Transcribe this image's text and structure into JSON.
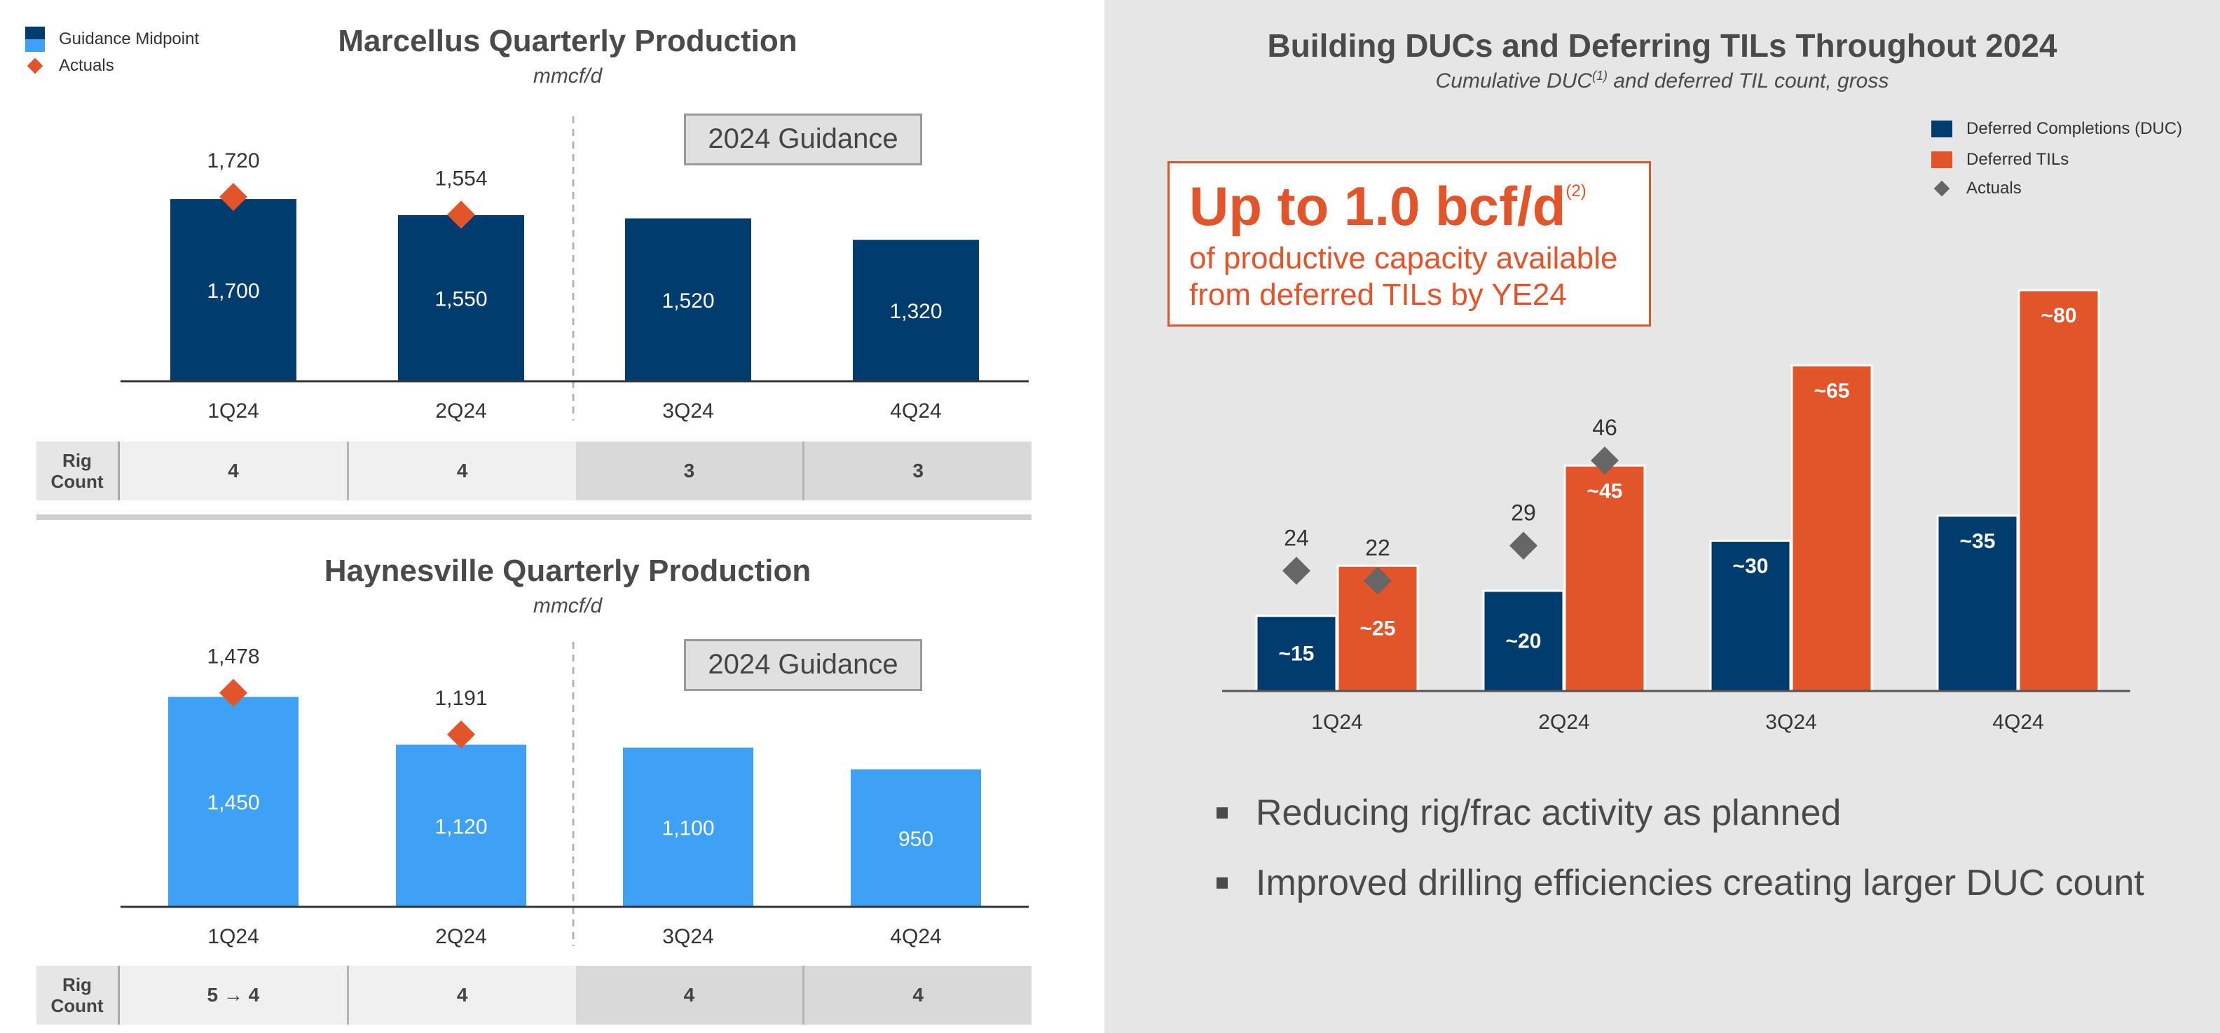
{
  "legend_left": {
    "guidance": "Guidance Midpoint",
    "actuals": "Actuals"
  },
  "marcellus": {
    "title": "Marcellus Quarterly Production",
    "subtitle": "mmcf/d",
    "guidance_label": "2024 Guidance",
    "rig_head": [
      "Rig",
      "Count"
    ],
    "rig_counts": [
      "4",
      "4",
      "3",
      "3"
    ]
  },
  "haynesville": {
    "title": "Haynesville Quarterly Production",
    "subtitle": "mmcf/d",
    "guidance_label": "2024 Guidance",
    "rig_head": [
      "Rig",
      "Count"
    ],
    "rig_counts": [
      "5 → 4",
      "4",
      "4",
      "4"
    ]
  },
  "duc": {
    "title": "Building DUCs and Deferring TILs Throughout 2024",
    "subtitle_pre": "Cumulative DUC",
    "subtitle_sup": "(1)",
    "subtitle_post": " and deferred TIL count, gross",
    "legend": {
      "duc": "Deferred Completions (DUC)",
      "til": "Deferred TILs",
      "actuals": "Actuals"
    },
    "callout": {
      "headline": "Up to 1.0 bcf/d",
      "sup": "(2)",
      "line1": "of productive capacity available",
      "line2": "from deferred TILs by YE24"
    },
    "bullets": [
      "Reducing rig/frac activity as planned",
      "Improved drilling efficiencies creating larger DUC count"
    ]
  },
  "colors": {
    "navy": "#003d6e",
    "light_blue": "#3fa1f3",
    "orange": "#e2542a",
    "gray_diamond": "#666666"
  },
  "chart_data": [
    {
      "type": "bar",
      "title": "Marcellus Quarterly Production",
      "subtitle": "mmcf/d",
      "categories": [
        "1Q24",
        "2Q24",
        "3Q24",
        "4Q24"
      ],
      "series": [
        {
          "name": "Guidance Midpoint",
          "values": [
            1700,
            1550,
            1520,
            1320
          ],
          "labels": [
            "1,700",
            "1,550",
            "1,520",
            "1,320"
          ]
        },
        {
          "name": "Actuals",
          "values": [
            1720,
            1554,
            null,
            null
          ],
          "labels": [
            "1,720",
            "1,554",
            null,
            null
          ]
        }
      ],
      "ylim": [
        0,
        2300
      ]
    },
    {
      "type": "bar",
      "title": "Haynesville Quarterly Production",
      "subtitle": "mmcf/d",
      "categories": [
        "1Q24",
        "2Q24",
        "3Q24",
        "4Q24"
      ],
      "series": [
        {
          "name": "Guidance Midpoint",
          "values": [
            1450,
            1120,
            1100,
            950
          ],
          "labels": [
            "1,450",
            "1,120",
            "1,100",
            "950"
          ]
        },
        {
          "name": "Actuals",
          "values": [
            1478,
            1191,
            null,
            null
          ],
          "labels": [
            "1,478",
            "1,191",
            null,
            null
          ]
        }
      ],
      "ylim": [
        0,
        2100
      ]
    },
    {
      "type": "bar",
      "title": "Building DUCs and Deferring TILs Throughout 2024",
      "subtitle": "Cumulative DUC(1) and deferred TIL count, gross",
      "categories": [
        "1Q24",
        "2Q24",
        "3Q24",
        "4Q24"
      ],
      "series": [
        {
          "name": "Deferred Completions (DUC)",
          "values": [
            15,
            20,
            30,
            35
          ],
          "labels": [
            "~15",
            "~20",
            "~30",
            "~35"
          ]
        },
        {
          "name": "Deferred TILs",
          "values": [
            25,
            45,
            65,
            80
          ],
          "labels": [
            "~25",
            "~45",
            "~65",
            "~80"
          ]
        }
      ],
      "actuals": {
        "name": "Actuals",
        "duc": [
          24,
          29,
          null,
          null
        ],
        "til": [
          22,
          46,
          null,
          null
        ]
      },
      "ylim": [
        0,
        115
      ]
    }
  ]
}
